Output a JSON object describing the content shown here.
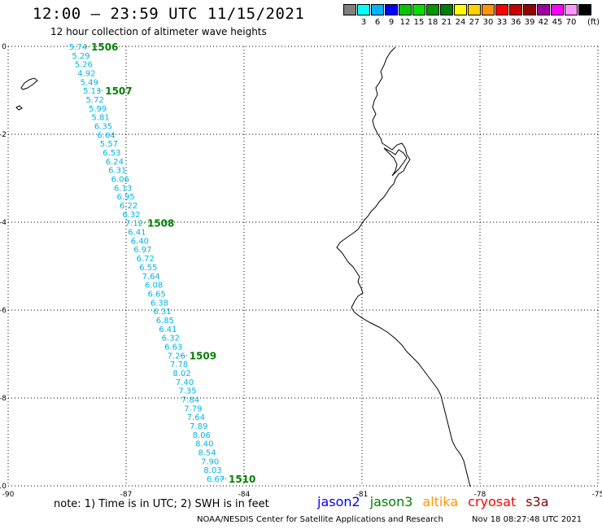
{
  "header": {
    "title": "12:00 – 23:59 UTC 11/15/2021",
    "subtitle": "12 hour collection of altimeter wave heights"
  },
  "legend": {
    "unit": "(ft)",
    "swatches": [
      {
        "label": "",
        "color": "#808080"
      },
      {
        "label": "3",
        "color": "#00ffff"
      },
      {
        "label": "6",
        "color": "#00b4ff"
      },
      {
        "label": "9",
        "color": "#0000ff"
      },
      {
        "label": "12",
        "color": "#00c800"
      },
      {
        "label": "15",
        "color": "#00e000"
      },
      {
        "label": "18",
        "color": "#009600"
      },
      {
        "label": "21",
        "color": "#008000"
      },
      {
        "label": "24",
        "color": "#ffff00"
      },
      {
        "label": "27",
        "color": "#ffd200"
      },
      {
        "label": "30",
        "color": "#ff9600"
      },
      {
        "label": "33",
        "color": "#ff0000"
      },
      {
        "label": "36",
        "color": "#c80000"
      },
      {
        "label": "39",
        "color": "#960000"
      },
      {
        "label": "42",
        "color": "#a000a0"
      },
      {
        "label": "45",
        "color": "#ff00ff"
      },
      {
        "label": "70",
        "color": "#ff96ff"
      },
      {
        "label": "",
        "color": "#000000"
      }
    ]
  },
  "axes": {
    "lon_ticks": [
      "-90",
      "-87",
      "-84",
      "-81",
      "-78",
      "-75"
    ],
    "lat_ticks": [
      "0",
      "-2",
      "-4",
      "-6",
      "-8",
      "-10"
    ]
  },
  "track": {
    "color": "#00b4e6",
    "swh_values": [
      "5.74",
      "5.29",
      "5.26",
      "4.92",
      "5.49",
      "5.13",
      "5.72",
      "5.99",
      "5.81",
      "6.35",
      "6.64",
      "5.57",
      "6.53",
      "6.24",
      "6.31",
      "6.06",
      "6.13",
      "6.95",
      "6.22",
      "6.32",
      "7.12",
      "6.41",
      "6.40",
      "6.97",
      "6.72",
      "6.55",
      "7.64",
      "6.08",
      "6.65",
      "6.38",
      "6.31",
      "6.85",
      "6.41",
      "6.32",
      "6.63",
      "7.26",
      "7.78",
      "8.02",
      "7.40",
      "7.35",
      "7.84",
      "7.79",
      "7.64",
      "7.89",
      "8.06",
      "8.40",
      "8.54",
      "7.90",
      "8.03",
      "6.67"
    ]
  },
  "time_labels": {
    "color": "#008000",
    "items": [
      {
        "label": "1506",
        "index": 0
      },
      {
        "label": "1507",
        "index": 5
      },
      {
        "label": "1508",
        "index": 20
      },
      {
        "label": "1509",
        "index": 35
      },
      {
        "label": "1510",
        "index": 49
      }
    ]
  },
  "footer": {
    "note": "note:  1) Time is in UTC;  2) SWH is in feet",
    "satellites": [
      {
        "name": "jason2",
        "color": "#0000ff"
      },
      {
        "name": "jason3",
        "color": "#008000"
      },
      {
        "name": "altika",
        "color": "#ff9600"
      },
      {
        "name": "cryosat",
        "color": "#ff0000"
      },
      {
        "name": "s3a",
        "color": "#800000"
      }
    ],
    "credit": "NOAA/NESDIS Center for Satellite Applications and Research",
    "timestamp": "Nov 18 08:27:48 UTC 2021"
  }
}
